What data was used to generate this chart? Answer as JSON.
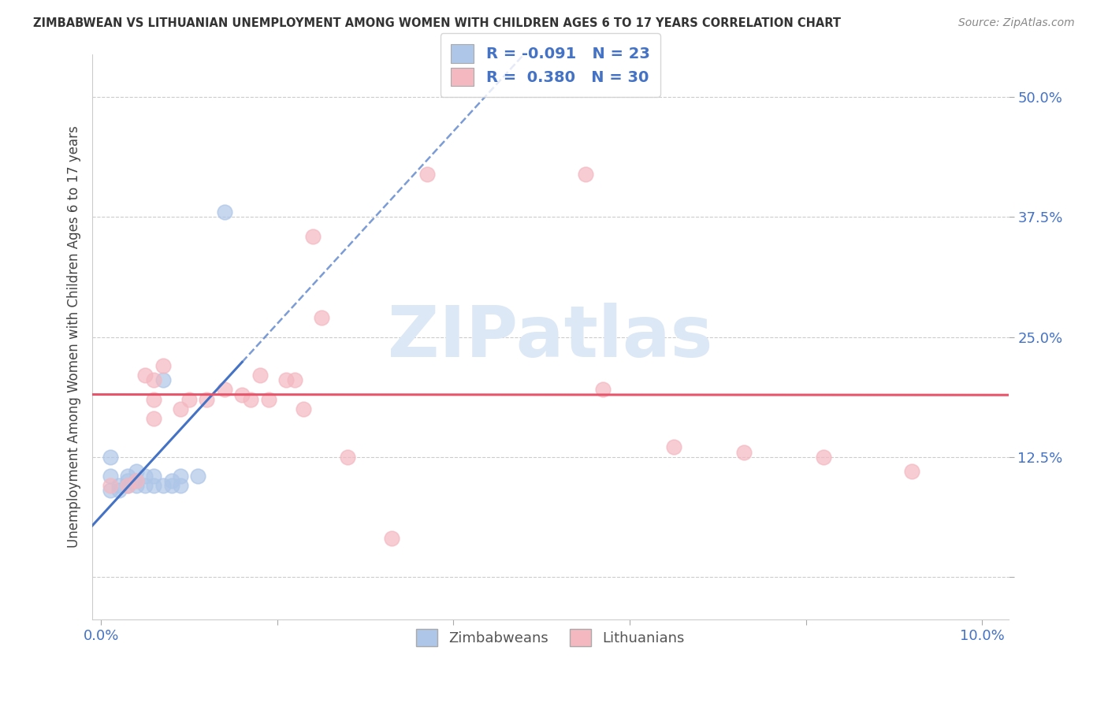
{
  "title": "ZIMBABWEAN VS LITHUANIAN UNEMPLOYMENT AMONG WOMEN WITH CHILDREN AGES 6 TO 17 YEARS CORRELATION CHART",
  "source": "Source: ZipAtlas.com",
  "ylabel": "Unemployment Among Women with Children Ages 6 to 17 years",
  "xlim": [
    -0.001,
    0.103
  ],
  "ylim": [
    -0.045,
    0.545
  ],
  "xlabel_ticks": [
    0.0,
    0.02,
    0.04,
    0.06,
    0.08,
    0.1
  ],
  "ylabel_ticks": [
    0.0,
    0.125,
    0.25,
    0.375,
    0.5
  ],
  "zim_R": "-0.091",
  "zim_N": "23",
  "lit_R": "0.380",
  "lit_N": "30",
  "zim_color": "#aec6e8",
  "lit_color": "#f4b8c1",
  "zim_line_color": "#4472c4",
  "lit_line_color": "#e8546a",
  "background_color": "#ffffff",
  "grid_color": "#cccccc",
  "title_color": "#333333",
  "watermark_color": "#dce8f5",
  "zimbabwean_points_x": [
    0.001,
    0.001,
    0.001,
    0.002,
    0.002,
    0.003,
    0.003,
    0.003,
    0.004,
    0.004,
    0.004,
    0.005,
    0.005,
    0.006,
    0.006,
    0.007,
    0.007,
    0.008,
    0.008,
    0.009,
    0.009,
    0.011,
    0.014
  ],
  "zimbabwean_points_y": [
    0.09,
    0.105,
    0.125,
    0.09,
    0.095,
    0.095,
    0.1,
    0.105,
    0.095,
    0.1,
    0.11,
    0.095,
    0.105,
    0.095,
    0.105,
    0.095,
    0.205,
    0.095,
    0.1,
    0.095,
    0.105,
    0.105,
    0.38
  ],
  "lithuanian_points_x": [
    0.001,
    0.003,
    0.004,
    0.005,
    0.006,
    0.006,
    0.006,
    0.007,
    0.009,
    0.01,
    0.012,
    0.014,
    0.016,
    0.017,
    0.018,
    0.019,
    0.021,
    0.022,
    0.023,
    0.024,
    0.025,
    0.028,
    0.033,
    0.037,
    0.055,
    0.057,
    0.065,
    0.073,
    0.082,
    0.092
  ],
  "lithuanian_points_y": [
    0.095,
    0.095,
    0.1,
    0.21,
    0.165,
    0.185,
    0.205,
    0.22,
    0.175,
    0.185,
    0.185,
    0.195,
    0.19,
    0.185,
    0.21,
    0.185,
    0.205,
    0.205,
    0.175,
    0.355,
    0.27,
    0.125,
    0.04,
    0.42,
    0.42,
    0.195,
    0.135,
    0.13,
    0.125,
    0.11
  ]
}
